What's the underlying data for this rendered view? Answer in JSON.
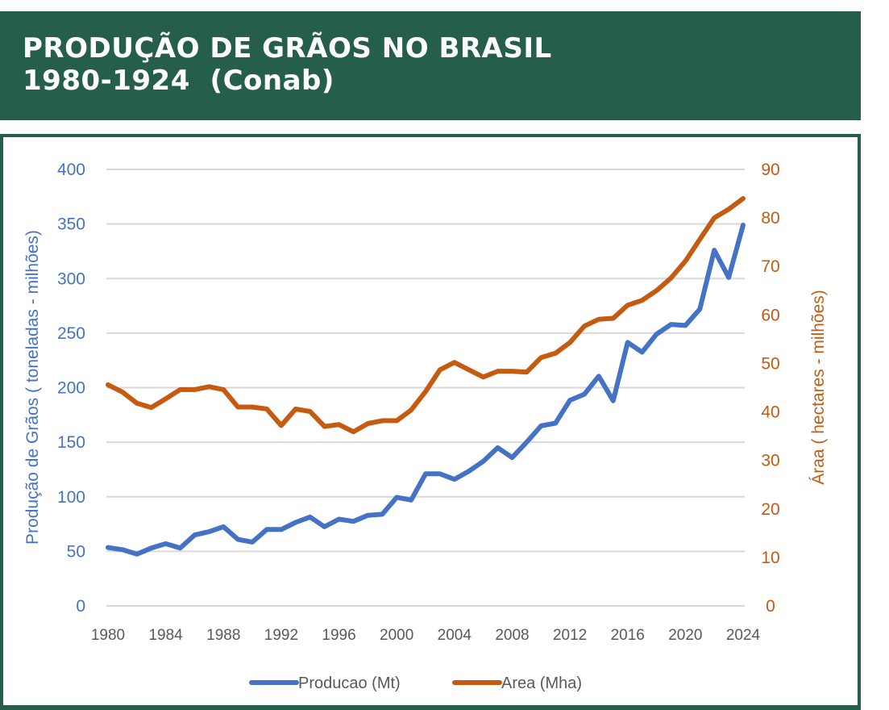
{
  "header": {
    "title_line1": "PRODUÇÃO DE GRÃOS NO BRASIL",
    "title_line2": "1980-1924  (Conab)",
    "background_color": "#255e49"
  },
  "chart_data": {
    "type": "line",
    "title": "PRODUÇÃO DE GRÃOS NO BRASIL 1980-1924  (Conab)",
    "xlabel": "",
    "ylabel": "Produção de Grãos ( toneladas - milhões)",
    "y2label": "Áraa ( hectares - milhões)",
    "ylim": [
      0,
      400
    ],
    "y2lim": [
      0,
      90
    ],
    "xlim": [
      1980,
      2024
    ],
    "grid": true,
    "legend_position": "bottom",
    "y_ticks": [
      "0",
      "50",
      "100",
      "150",
      "200",
      "250",
      "300",
      "350",
      "400"
    ],
    "y2_ticks": [
      "0",
      "10",
      "20",
      "30",
      "40",
      "50",
      "60",
      "70",
      "80",
      "90"
    ],
    "x_ticks": [
      "1980",
      "1984",
      "1988",
      "1992",
      "1996",
      "2000",
      "2004",
      "2008",
      "2012",
      "2016",
      "2020",
      "2024"
    ],
    "x": [
      1980,
      1981,
      1982,
      1983,
      1984,
      1985,
      1986,
      1987,
      1988,
      1989,
      1990,
      1991,
      1992,
      1993,
      1994,
      1995,
      1996,
      1997,
      1998,
      1999,
      2000,
      2001,
      2002,
      2003,
      2004,
      2005,
      2006,
      2007,
      2008,
      2009,
      2010,
      2011,
      2012,
      2013,
      2014,
      2015,
      2016,
      2017,
      2018,
      2019,
      2020,
      2021,
      2022,
      2023,
      2024
    ],
    "series": [
      {
        "name": "Producao (Mt)",
        "axis": "left",
        "color": "#4472c4",
        "values": [
          53.5,
          51.5,
          47.5,
          53,
          57,
          53,
          65,
          68,
          72.5,
          61,
          58.5,
          70,
          70,
          76.5,
          81.5,
          72.5,
          79.5,
          77.5,
          83,
          84,
          99.5,
          97,
          121,
          121,
          116,
          123.5,
          132.5,
          145,
          136,
          150,
          165,
          167.5,
          188.5,
          194,
          210.5,
          188,
          241.5,
          232.5,
          249,
          258,
          257,
          272,
          326,
          301,
          349
        ]
      },
      {
        "name": "Area (Mha)",
        "axis": "right",
        "color": "#c55a11",
        "values": [
          45.6,
          44.1,
          41.8,
          40.9,
          42.7,
          44.6,
          44.6,
          45.2,
          44.6,
          41,
          41,
          40.6,
          37.2,
          40.6,
          40.1,
          37,
          37.4,
          35.9,
          37.6,
          38.2,
          38.2,
          40.4,
          44.2,
          48.7,
          50.2,
          48.7,
          47.2,
          48.4,
          48.4,
          48.2,
          51.2,
          52.1,
          54.3,
          57.7,
          59.1,
          59.3,
          62,
          63,
          65,
          67.6,
          71.1,
          75.6,
          80,
          81.8,
          84
        ]
      }
    ]
  }
}
